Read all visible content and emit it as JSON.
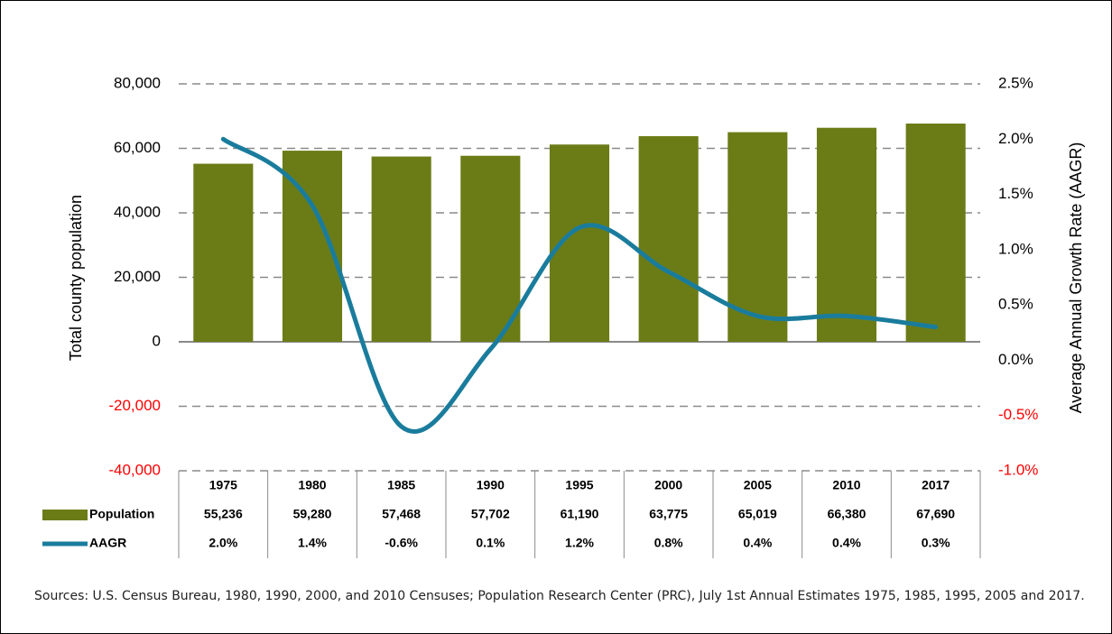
{
  "chart_data": {
    "type": "combo",
    "categories": [
      "1975",
      "1980",
      "1985",
      "1990",
      "1995",
      "2000",
      "2005",
      "2010",
      "2017"
    ],
    "series": [
      {
        "name": "Population",
        "type": "bar",
        "color": "#6b7c17",
        "values": [
          55236,
          59280,
          57468,
          57702,
          61190,
          63775,
          65019,
          66380,
          67690
        ],
        "value_labels": [
          "55,236",
          "59,280",
          "57,468",
          "57,702",
          "61,190",
          "63,775",
          "65,019",
          "66,380",
          "67,690"
        ]
      },
      {
        "name": "AAGR",
        "type": "line",
        "color": "#1a7c9c",
        "axis": "y2",
        "values": [
          2.0,
          1.4,
          -0.6,
          0.1,
          1.2,
          0.8,
          0.4,
          0.4,
          0.3
        ],
        "value_labels": [
          "2.0%",
          "1.4%",
          "-0.6%",
          "0.1%",
          "1.2%",
          "0.8%",
          "0.4%",
          "0.4%",
          "0.3%"
        ]
      }
    ],
    "ylabel": "Total county population",
    "y2label": "Average Annual Growth Rate (AAGR)",
    "ylim": [
      -40000,
      80000
    ],
    "yticks": [
      {
        "value": -40000,
        "label": "-40,000"
      },
      {
        "value": -20000,
        "label": "-20,000"
      },
      0,
      {
        "value": 20000,
        "label": "20,000"
      },
      {
        "value": 40000,
        "label": "40,000"
      },
      {
        "value": 60000,
        "label": "60,000"
      },
      {
        "value": 80000,
        "label": "80,000"
      }
    ],
    "y2lim": [
      -1.0,
      2.5
    ],
    "y2ticks": [
      {
        "value": -1.0,
        "label": "-1.0%"
      },
      {
        "value": -0.5,
        "label": "-0.5%"
      },
      {
        "value": 0.0,
        "label": "0.0%"
      },
      {
        "value": 0.5,
        "label": "0.5%"
      },
      {
        "value": 1.0,
        "label": "1.0%"
      },
      {
        "value": 1.5,
        "label": "1.5%"
      },
      {
        "value": 2.0,
        "label": "2.0%"
      },
      {
        "value": 2.5,
        "label": "2.5%"
      }
    ],
    "grid": true,
    "negative_tick_color": "#ff0000",
    "source": "Sources: U.S. Census Bureau, 1980, 1990, 2000, and 2010 Censuses; Population Research Center (PRC), July 1st Annual Estimates 1975, 1985, 1995, 2005 and 2017."
  }
}
